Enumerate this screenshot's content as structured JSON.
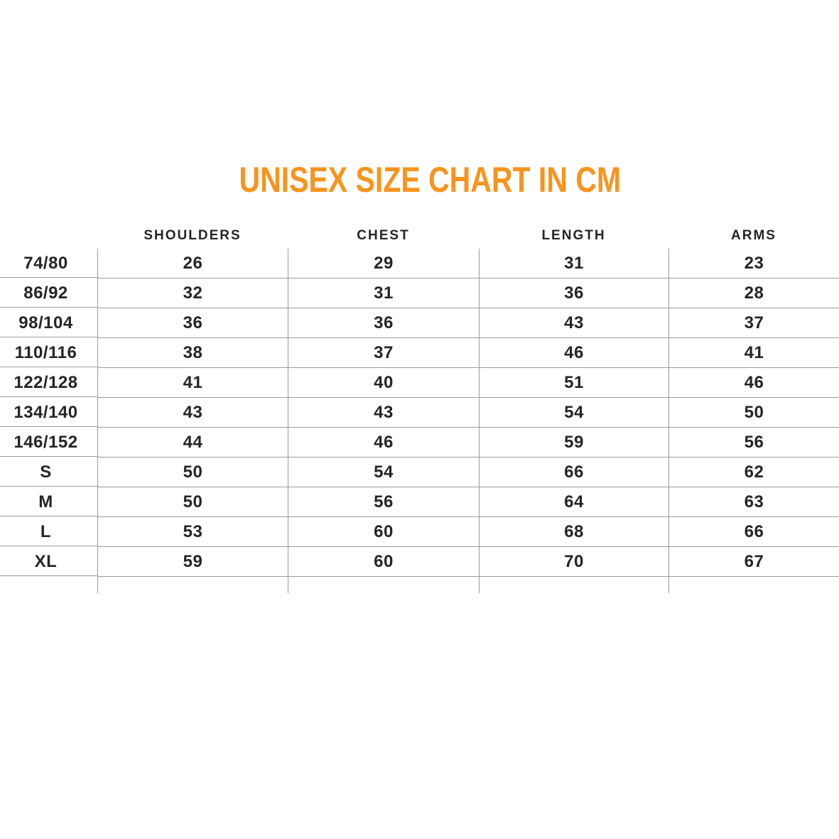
{
  "title": "UNISEX SIZE CHART IN CM",
  "colors": {
    "title": "#F7941E",
    "text": "#252525",
    "grid_line": "#9B9B9B"
  },
  "chart_data": {
    "type": "table",
    "title": "UNISEX SIZE CHART IN CM",
    "columns": [
      "SHOULDERS",
      "CHEST",
      "LENGTH",
      "ARMS"
    ],
    "rows": [
      {
        "size": "74/80",
        "values": [
          26,
          29,
          31,
          23
        ]
      },
      {
        "size": "86/92",
        "values": [
          32,
          31,
          36,
          28
        ]
      },
      {
        "size": "98/104",
        "values": [
          36,
          36,
          43,
          37
        ]
      },
      {
        "size": "110/116",
        "values": [
          38,
          37,
          46,
          41
        ]
      },
      {
        "size": "122/128",
        "values": [
          41,
          40,
          51,
          46
        ]
      },
      {
        "size": "134/140",
        "values": [
          43,
          43,
          54,
          50
        ]
      },
      {
        "size": "146/152",
        "values": [
          44,
          46,
          59,
          56
        ]
      },
      {
        "size": "S",
        "values": [
          50,
          54,
          66,
          62
        ]
      },
      {
        "size": "M",
        "values": [
          50,
          56,
          64,
          63
        ]
      },
      {
        "size": "L",
        "values": [
          53,
          60,
          68,
          66
        ]
      },
      {
        "size": "XL",
        "values": [
          59,
          60,
          70,
          67
        ]
      }
    ]
  }
}
